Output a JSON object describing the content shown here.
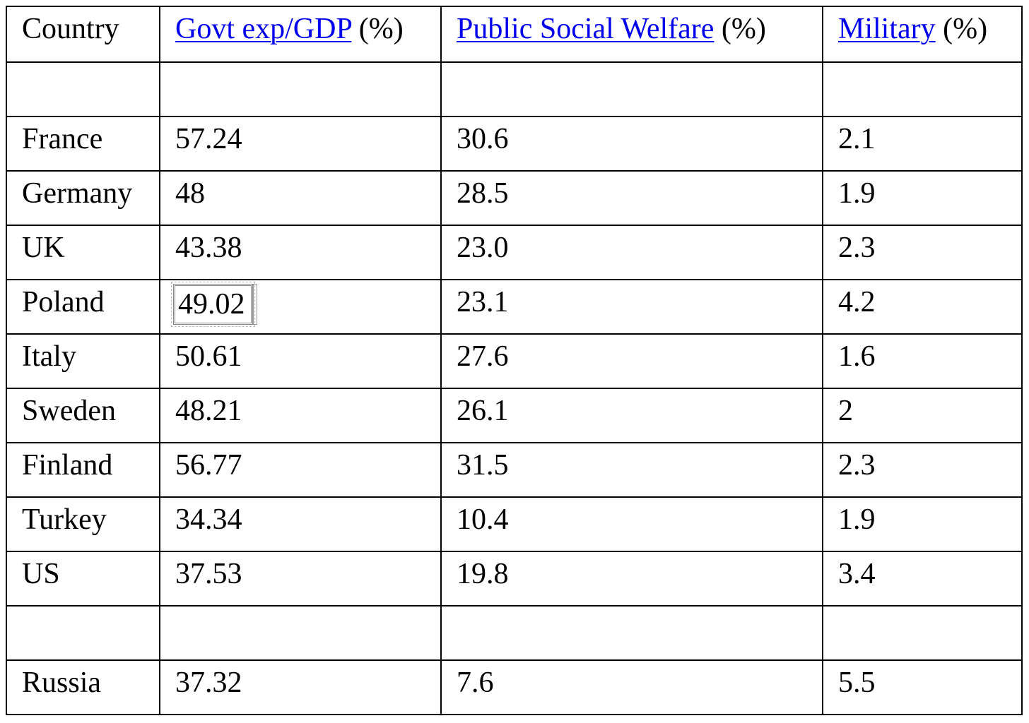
{
  "table": {
    "headers": {
      "country": "Country",
      "govt": {
        "link": "Govt exp/GDP",
        "suffix": " (%)"
      },
      "welfare": {
        "link": "Public Social Welfare",
        "suffix": " (%)"
      },
      "military": {
        "link": "Military",
        "suffix": " (%)"
      }
    },
    "rows": [
      {
        "country": "",
        "govt": "",
        "welfare": "",
        "military": ""
      },
      {
        "country": "France",
        "govt": "57.24",
        "welfare": "30.6",
        "military": "2.1"
      },
      {
        "country": "Germany",
        "govt": "48",
        "welfare": "28.5",
        "military": "1.9"
      },
      {
        "country": "UK",
        "govt": "43.38",
        "welfare": "23.0",
        "military": "2.3"
      },
      {
        "country": "Poland",
        "govt": "49.02",
        "welfare": "23.1",
        "military": "4.2"
      },
      {
        "country": "Italy",
        "govt": "50.61",
        "welfare": "27.6",
        "military": "1.6"
      },
      {
        "country": "Sweden",
        "govt": "48.21",
        "welfare": "26.1",
        "military": "2"
      },
      {
        "country": "Finland",
        "govt": "56.77",
        "welfare": "31.5",
        "military": "2.3"
      },
      {
        "country": "Turkey",
        "govt": "34.34",
        "welfare": "10.4",
        "military": "1.9"
      },
      {
        "country": "US",
        "govt": "37.53",
        "welfare": "19.8",
        "military": "3.4"
      },
      {
        "country": "",
        "govt": "",
        "welfare": "",
        "military": ""
      },
      {
        "country": "Russia",
        "govt": "37.32",
        "welfare": "7.6",
        "military": "5.5"
      }
    ]
  },
  "colors": {
    "link": "#0000ee",
    "border": "#000000",
    "text": "#000000",
    "background": "#ffffff"
  }
}
